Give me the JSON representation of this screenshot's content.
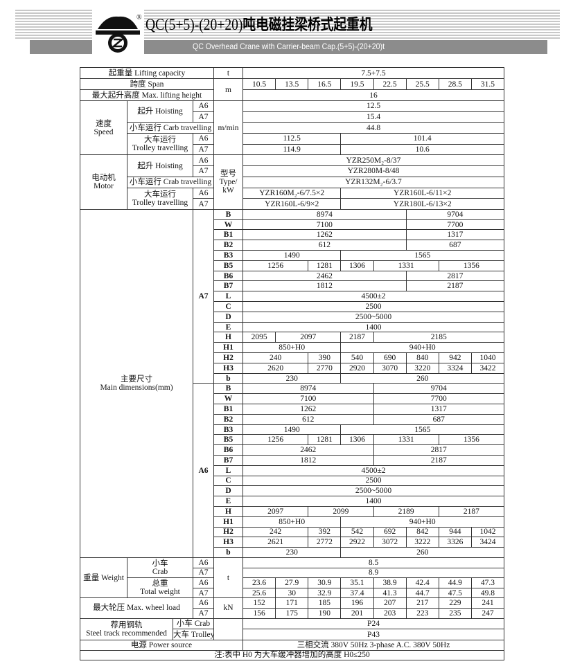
{
  "header": {
    "title_model": "QC(5+5)-(20+20)",
    "title_cn": "吨电磁挂梁桥式起重机",
    "subtitle": "QC Overhead Crane with Carrier-beam Cap.(5+5)-(20+20)t",
    "logo_text": "®"
  },
  "capacity": {
    "label": "起重量 Lifting capacity",
    "unit": "t",
    "values": [
      "7.5+7.5"
    ]
  },
  "span": {
    "label": "跨度 Span",
    "unit": "m",
    "values": [
      "10.5",
      "13.5",
      "16.5",
      "19.5",
      "22.5",
      "25.5",
      "28.5",
      "31.5"
    ]
  },
  "lift_height": {
    "label": "最大起升高度 Max. lifting height",
    "values": [
      "16"
    ]
  },
  "speed": {
    "label_cn": "速度",
    "label_en": "Speed",
    "unit": "m/min",
    "hoisting_label": "起升 Hoisting",
    "hoisting_a6": {
      "grade": "A6",
      "values": [
        "12.5"
      ]
    },
    "hoisting_a7": {
      "grade": "A7",
      "values": [
        "15.4"
      ]
    },
    "crab": {
      "label": "小车运行 Carb travelling",
      "values": [
        "44.8"
      ]
    },
    "trolley_label_cn": "大车运行",
    "trolley_label_en": "Trolley travelling",
    "trolley_a6": {
      "grade": "A6",
      "values": [
        "112.5",
        "101.4"
      ],
      "spans": [
        3,
        5
      ]
    },
    "trolley_a7": {
      "grade": "A7",
      "values": [
        "114.9",
        "10.6"
      ],
      "spans": [
        3,
        5
      ]
    }
  },
  "motor": {
    "label_cn": "电动机",
    "label_en": "Motor",
    "unit_1": "型号",
    "unit_2": "Type/",
    "unit_3": "kW",
    "hoisting_label": "起升 Hoisting",
    "hoisting_a6": {
      "grade": "A6",
      "values": [
        "YZR250M₂-8/37"
      ]
    },
    "hoisting_a7": {
      "grade": "A7",
      "values": [
        "YZR280M-8/48"
      ]
    },
    "crab": {
      "label": "小车运行 Crab travelling",
      "values": [
        "YZR132M₂-6/3.7"
      ]
    },
    "trolley_label_cn": "大车运行",
    "trolley_label_en": "Trolley travelling",
    "trolley_a6": {
      "grade": "A6",
      "values": [
        "YZR160M₂-6/7.5×2",
        "YZR160L-6/11×2"
      ],
      "spans": [
        3,
        5
      ]
    },
    "trolley_a7": {
      "grade": "A7",
      "values": [
        "YZR160L-6/9×2",
        "YZR180L-6/13×2"
      ],
      "spans": [
        3,
        5
      ]
    }
  },
  "dims": {
    "label_cn": "主要尺寸",
    "label_en": "Main dimensions(mm)",
    "a7": {
      "grade": "A7",
      "rows": [
        {
          "k": "B",
          "values": [
            "8974",
            "9704"
          ],
          "spans": [
            5,
            3
          ]
        },
        {
          "k": "W",
          "values": [
            "7100",
            "7700"
          ],
          "spans": [
            5,
            3
          ]
        },
        {
          "k": "B1",
          "values": [
            "1262",
            "1317"
          ],
          "spans": [
            5,
            3
          ]
        },
        {
          "k": "B2",
          "values": [
            "612",
            "687"
          ],
          "spans": [
            5,
            3
          ]
        },
        {
          "k": "B3",
          "values": [
            "1490",
            "1565"
          ],
          "spans": [
            3,
            5
          ]
        },
        {
          "k": "B5",
          "values": [
            "1256",
            "1281",
            "1306",
            "1331",
            "1356"
          ],
          "spans": [
            2,
            1,
            1,
            2,
            2
          ]
        },
        {
          "k": "B6",
          "values": [
            "2462",
            "2817"
          ],
          "spans": [
            5,
            3
          ]
        },
        {
          "k": "B7",
          "values": [
            "1812",
            "2187"
          ],
          "spans": [
            5,
            3
          ]
        },
        {
          "k": "L",
          "values": [
            "4500±2"
          ]
        },
        {
          "k": "C",
          "values": [
            "2500"
          ]
        },
        {
          "k": "D",
          "values": [
            "2500~5000"
          ]
        },
        {
          "k": "E",
          "values": [
            "1400"
          ]
        },
        {
          "k": "H",
          "values": [
            "2095",
            "2097",
            "2187",
            "2185"
          ],
          "spans": [
            1,
            2,
            1,
            4
          ]
        },
        {
          "k": "H1",
          "values": [
            "850+H0",
            "940+H0"
          ],
          "spans": [
            3,
            5
          ]
        },
        {
          "k": "H2",
          "values": [
            "240",
            "390",
            "540",
            "690",
            "840",
            "942",
            "1040"
          ],
          "spans": [
            2,
            1,
            1,
            1,
            1,
            1,
            1
          ]
        },
        {
          "k": "H3",
          "values": [
            "2620",
            "2770",
            "2920",
            "3070",
            "3220",
            "3324",
            "3422"
          ],
          "spans": [
            2,
            1,
            1,
            1,
            1,
            1,
            1
          ]
        },
        {
          "k": "b",
          "values": [
            "230",
            "260"
          ],
          "spans": [
            3,
            5
          ]
        }
      ]
    },
    "a6": {
      "grade": "A6",
      "rows": [
        {
          "k": "B",
          "values": [
            "8974",
            "9704"
          ],
          "spans": [
            4,
            4
          ]
        },
        {
          "k": "W",
          "values": [
            "7100",
            "7700"
          ],
          "spans": [
            4,
            4
          ]
        },
        {
          "k": "B1",
          "values": [
            "1262",
            "1317"
          ],
          "spans": [
            4,
            4
          ]
        },
        {
          "k": "B2",
          "values": [
            "612",
            "687"
          ],
          "spans": [
            4,
            4
          ]
        },
        {
          "k": "B3",
          "values": [
            "1490",
            "1565"
          ],
          "spans": [
            3,
            5
          ]
        },
        {
          "k": "B5",
          "values": [
            "1256",
            "1281",
            "1306",
            "1331",
            "1356"
          ],
          "spans": [
            2,
            1,
            1,
            2,
            2
          ]
        },
        {
          "k": "B6",
          "values": [
            "2462",
            "2817"
          ],
          "spans": [
            4,
            4
          ]
        },
        {
          "k": "B7",
          "values": [
            "1812",
            "2187"
          ],
          "spans": [
            4,
            4
          ]
        },
        {
          "k": "L",
          "values": [
            "4500±2"
          ]
        },
        {
          "k": "C",
          "values": [
            "2500"
          ]
        },
        {
          "k": "D",
          "values": [
            "2500~5000"
          ]
        },
        {
          "k": "E",
          "values": [
            "1400"
          ]
        },
        {
          "k": "H",
          "values": [
            "2097",
            "2099",
            "2189",
            "2187"
          ],
          "spans": [
            2,
            2,
            2,
            2
          ]
        },
        {
          "k": "H1",
          "values": [
            "850+H0",
            "940+H0"
          ],
          "spans": [
            3,
            5
          ]
        },
        {
          "k": "H2",
          "values": [
            "242",
            "392",
            "542",
            "692",
            "842",
            "944",
            "1042"
          ],
          "spans": [
            2,
            1,
            1,
            1,
            1,
            1,
            1
          ]
        },
        {
          "k": "H3",
          "values": [
            "2621",
            "2772",
            "2922",
            "3072",
            "3222",
            "3326",
            "3424"
          ],
          "spans": [
            2,
            1,
            1,
            1,
            1,
            1,
            1
          ]
        },
        {
          "k": "b",
          "values": [
            "230",
            "260"
          ],
          "spans": [
            3,
            5
          ]
        }
      ]
    }
  },
  "weight": {
    "label": "重量 Weight",
    "unit": "t",
    "crab_cn": "小车",
    "crab_en": "Crab",
    "crab_a6": {
      "grade": "A6",
      "values": [
        "8.5"
      ]
    },
    "crab_a7": {
      "grade": "A7",
      "values": [
        "8.9"
      ]
    },
    "total_cn": "总重",
    "total_en": "Total weight",
    "total_a6": {
      "grade": "A6",
      "values": [
        "23.6",
        "27.9",
        "30.9",
        "35.1",
        "38.9",
        "42.4",
        "44.9",
        "47.3"
      ]
    },
    "total_a7": {
      "grade": "A7",
      "values": [
        "25.6",
        "30",
        "32.9",
        "37.4",
        "41.3",
        "44.7",
        "47.5",
        "49.8"
      ]
    }
  },
  "wheel": {
    "label": "最大轮压 Max. wheel load",
    "unit": "kN",
    "a6": {
      "grade": "A6",
      "values": [
        "152",
        "171",
        "185",
        "196",
        "207",
        "217",
        "229",
        "241"
      ]
    },
    "a7": {
      "grade": "A7",
      "values": [
        "156",
        "175",
        "190",
        "201",
        "203",
        "223",
        "235",
        "247"
      ]
    }
  },
  "rail": {
    "label_cn": "荐用钢轨",
    "label_en": "Steel track recommended",
    "crab": {
      "label": "小车 Crab",
      "values": [
        "P24"
      ]
    },
    "trolley": {
      "label": "大车 Trolley",
      "values": [
        "P43"
      ]
    }
  },
  "power": {
    "label": "电源 Power source",
    "values": [
      "三相交流 380V 50Hz 3-phase A.C.  380V  50Hz"
    ]
  },
  "note": "注:表中 H0 为大车缓冲器增加的高度  H0≤250"
}
